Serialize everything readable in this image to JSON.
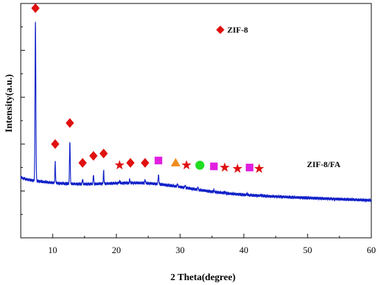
{
  "chart_data": {
    "type": "line",
    "xlabel": "2 Theta(degree)",
    "ylabel": "Intensity(a.u.)",
    "xlim": [
      5,
      60
    ],
    "ylim": [
      0,
      100
    ],
    "x_ticks": [
      10,
      20,
      30,
      40,
      50,
      60
    ],
    "y_ticks_labeled": false,
    "grid": false,
    "legend": {
      "placement": "top-right",
      "marker": "diamond",
      "color": "#e01010",
      "label": "ZIF-8"
    },
    "series": [
      {
        "label": "ZIF-8/FA",
        "color": "#1020c8",
        "baseline": {
          "start": 26,
          "end": 16
        },
        "peaks": [
          {
            "x": 7.3,
            "h": 68,
            "w": 0.09
          },
          {
            "x": 10.4,
            "h": 9,
            "w": 0.07
          },
          {
            "x": 12.7,
            "h": 18,
            "w": 0.08
          },
          {
            "x": 14.7,
            "h": 2.2,
            "w": 0.07
          },
          {
            "x": 16.4,
            "h": 4,
            "w": 0.07
          },
          {
            "x": 18.0,
            "h": 5.5,
            "w": 0.07
          },
          {
            "x": 20.5,
            "h": 1.0,
            "w": 0.07
          },
          {
            "x": 22.1,
            "h": 1.6,
            "w": 0.07
          },
          {
            "x": 24.5,
            "h": 1.6,
            "w": 0.07
          },
          {
            "x": 26.6,
            "h": 3.8,
            "w": 0.09
          },
          {
            "x": 29.6,
            "h": 1.2,
            "w": 0.07
          },
          {
            "x": 30.8,
            "h": 1.0,
            "w": 0.07
          },
          {
            "x": 32.8,
            "h": 1.1,
            "w": 0.07
          },
          {
            "x": 35.3,
            "h": 1.0,
            "w": 0.07
          },
          {
            "x": 37.0,
            "h": 0.7,
            "w": 0.07
          },
          {
            "x": 40.5,
            "h": 0.6,
            "w": 0.07
          },
          {
            "x": 42.7,
            "h": 0.5,
            "w": 0.07
          }
        ]
      }
    ],
    "markers": [
      {
        "shape": "diamond",
        "color": "#e01010",
        "x": 7.3,
        "y": 98
      },
      {
        "shape": "diamond",
        "color": "#e01010",
        "x": 10.4,
        "y": 40
      },
      {
        "shape": "diamond",
        "color": "#e01010",
        "x": 12.7,
        "y": 49
      },
      {
        "shape": "diamond",
        "color": "#e01010",
        "x": 14.7,
        "y": 32
      },
      {
        "shape": "diamond",
        "color": "#e01010",
        "x": 16.4,
        "y": 35
      },
      {
        "shape": "diamond",
        "color": "#e01010",
        "x": 18.0,
        "y": 36
      },
      {
        "shape": "star",
        "color": "#e01010",
        "x": 20.5,
        "y": 31
      },
      {
        "shape": "diamond",
        "color": "#e01010",
        "x": 22.2,
        "y": 32
      },
      {
        "shape": "diamond",
        "color": "#e01010",
        "x": 24.5,
        "y": 32
      },
      {
        "shape": "square",
        "color": "#e020e0",
        "x": 26.6,
        "y": 33
      },
      {
        "shape": "triangle",
        "color": "#f08c20",
        "x": 29.3,
        "y": 32
      },
      {
        "shape": "star",
        "color": "#e01010",
        "x": 31.0,
        "y": 31
      },
      {
        "shape": "circle",
        "color": "#20dd20",
        "x": 33.1,
        "y": 31
      },
      {
        "shape": "square",
        "color": "#e020e0",
        "x": 35.3,
        "y": 30.5
      },
      {
        "shape": "star",
        "color": "#e01010",
        "x": 37.0,
        "y": 30
      },
      {
        "shape": "star",
        "color": "#e01010",
        "x": 39.0,
        "y": 29.5
      },
      {
        "shape": "square",
        "color": "#e020e0",
        "x": 40.9,
        "y": 30
      },
      {
        "shape": "star",
        "color": "#e01010",
        "x": 42.4,
        "y": 29.5
      }
    ]
  }
}
